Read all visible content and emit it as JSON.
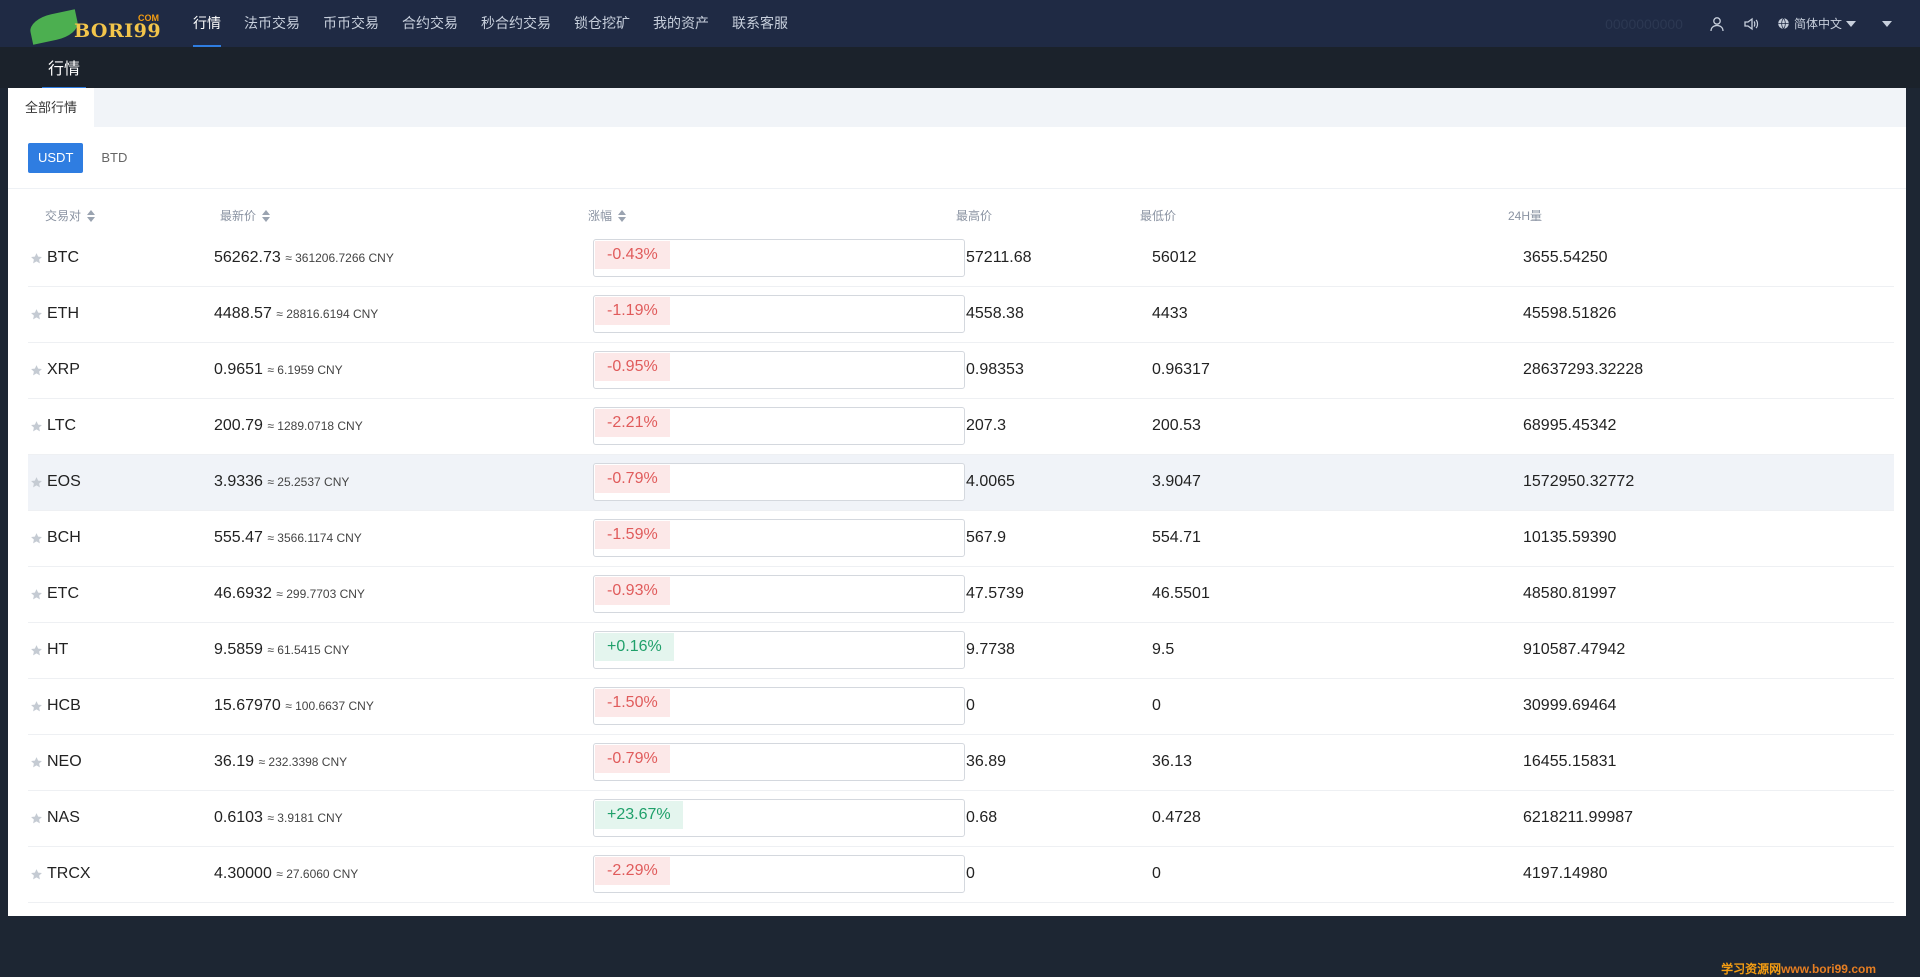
{
  "header": {
    "logo_text": "BORI99",
    "logo_com": "COM",
    "nav": [
      "行情",
      "法币交易",
      "币币交易",
      "合约交易",
      "秒合约交易",
      "锁仓挖矿",
      "我的资产",
      "联系客服"
    ],
    "right_blurred_text": "0000000000",
    "language": "简体中文"
  },
  "subheader": {
    "title": "行情"
  },
  "tabs": {
    "all_market": "全部行情"
  },
  "coin_toggle": {
    "usdt": "USDT",
    "btd": "BTD"
  },
  "table": {
    "headers": {
      "pair": "交易对",
      "last": "最新价",
      "change": "涨幅",
      "high": "最高价",
      "low": "最低价",
      "volume": "24H量"
    },
    "rows": [
      {
        "pair": "BTC",
        "last": "56262.73",
        "cny": "≈ 361206.7266 CNY",
        "change": "-0.43%",
        "dir": "down",
        "high": "57211.68",
        "low": "56012",
        "volume": "3655.54250"
      },
      {
        "pair": "ETH",
        "last": "4488.57",
        "cny": "≈ 28816.6194 CNY",
        "change": "-1.19%",
        "dir": "down",
        "high": "4558.38",
        "low": "4433",
        "volume": "45598.51826"
      },
      {
        "pair": "XRP",
        "last": "0.9651",
        "cny": "≈ 6.1959 CNY",
        "change": "-0.95%",
        "dir": "down",
        "high": "0.98353",
        "low": "0.96317",
        "volume": "28637293.32228"
      },
      {
        "pair": "LTC",
        "last": "200.79",
        "cny": "≈ 1289.0718 CNY",
        "change": "-2.21%",
        "dir": "down",
        "high": "207.3",
        "low": "200.53",
        "volume": "68995.45342"
      },
      {
        "pair": "EOS",
        "last": "3.9336",
        "cny": "≈ 25.2537 CNY",
        "change": "-0.79%",
        "dir": "down",
        "high": "4.0065",
        "low": "3.9047",
        "volume": "1572950.32772"
      },
      {
        "pair": "BCH",
        "last": "555.47",
        "cny": "≈ 3566.1174 CNY",
        "change": "-1.59%",
        "dir": "down",
        "high": "567.9",
        "low": "554.71",
        "volume": "10135.59390"
      },
      {
        "pair": "ETC",
        "last": "46.6932",
        "cny": "≈ 299.7703 CNY",
        "change": "-0.93%",
        "dir": "down",
        "high": "47.5739",
        "low": "46.5501",
        "volume": "48580.81997"
      },
      {
        "pair": "HT",
        "last": "9.5859",
        "cny": "≈ 61.5415 CNY",
        "change": "+0.16%",
        "dir": "up",
        "high": "9.7738",
        "low": "9.5",
        "volume": "910587.47942"
      },
      {
        "pair": "HCB",
        "last": "15.67970",
        "cny": "≈ 100.6637 CNY",
        "change": "-1.50%",
        "dir": "down",
        "high": "0",
        "low": "0",
        "volume": "30999.69464"
      },
      {
        "pair": "NEO",
        "last": "36.19",
        "cny": "≈ 232.3398 CNY",
        "change": "-0.79%",
        "dir": "down",
        "high": "36.89",
        "low": "36.13",
        "volume": "16455.15831"
      },
      {
        "pair": "NAS",
        "last": "0.6103",
        "cny": "≈ 3.9181 CNY",
        "change": "+23.67%",
        "dir": "up",
        "high": "0.68",
        "low": "0.4728",
        "volume": "6218211.99987"
      },
      {
        "pair": "TRCX",
        "last": "4.30000",
        "cny": "≈ 27.6060 CNY",
        "change": "-2.29%",
        "dir": "down",
        "high": "0",
        "low": "0",
        "volume": "4197.14980"
      }
    ]
  },
  "watermark": {
    "a": "学习资源网",
    "b": "www.bori99.com"
  }
}
